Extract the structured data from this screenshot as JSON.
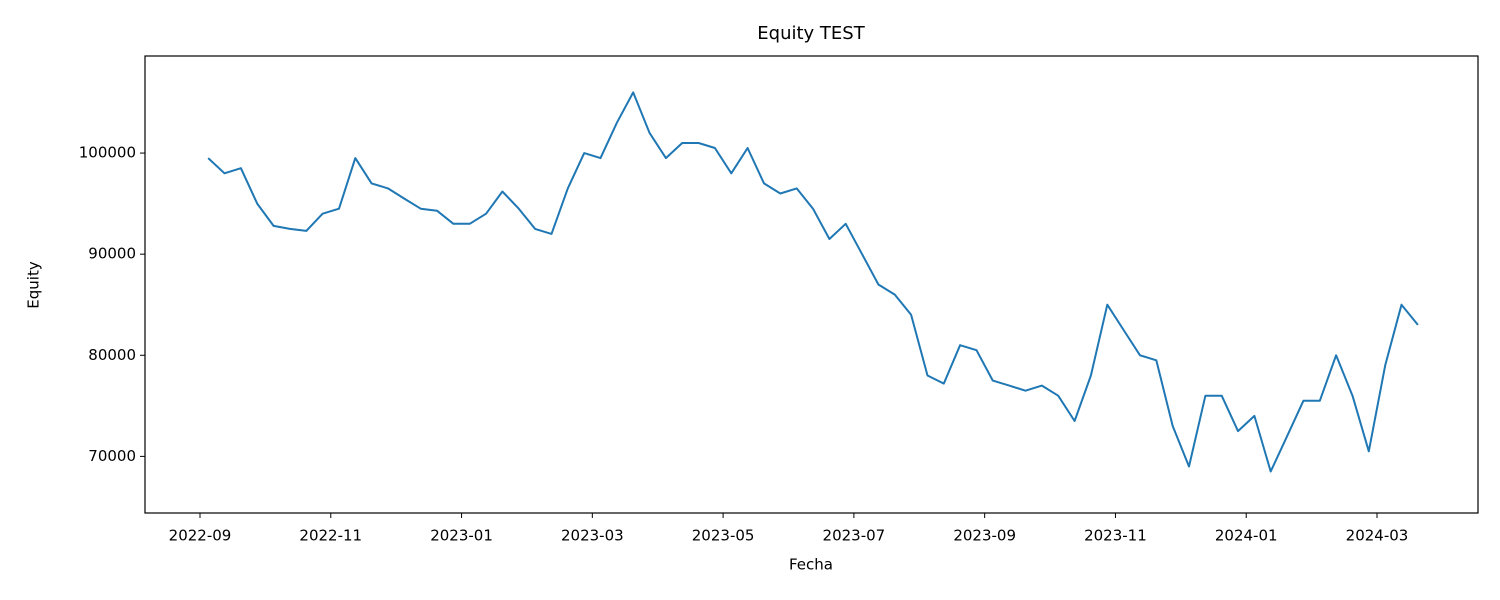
{
  "chart_data": {
    "type": "line",
    "title": "Equity TEST",
    "x_label": "Fecha",
    "y_label": "Equity",
    "x": [
      "2022-09",
      "2022-09",
      "2022-09",
      "2022-09",
      "2022-10",
      "2022-10",
      "2022-10",
      "2022-10",
      "2022-11",
      "2022-11",
      "2022-11",
      "2022-11",
      "2022-12",
      "2022-12",
      "2022-12",
      "2022-12",
      "2023-01",
      "2023-01",
      "2023-01",
      "2023-01",
      "2023-02",
      "2023-02",
      "2023-02",
      "2023-02",
      "2023-03",
      "2023-03",
      "2023-03",
      "2023-03",
      "2023-04",
      "2023-04",
      "2023-04",
      "2023-04",
      "2023-05",
      "2023-05",
      "2023-05",
      "2023-05",
      "2023-06",
      "2023-06",
      "2023-06",
      "2023-06",
      "2023-07",
      "2023-07",
      "2023-07",
      "2023-07",
      "2023-08",
      "2023-08",
      "2023-08",
      "2023-08",
      "2023-09",
      "2023-09",
      "2023-09",
      "2023-09",
      "2023-10",
      "2023-10",
      "2023-10",
      "2023-10",
      "2023-11",
      "2023-11",
      "2023-11",
      "2023-11",
      "2023-12",
      "2023-12",
      "2023-12",
      "2023-12",
      "2024-01",
      "2024-01",
      "2024-01",
      "2024-01",
      "2024-02",
      "2024-02",
      "2024-02",
      "2024-02",
      "2024-03",
      "2024-03",
      "2024-03"
    ],
    "values": [
      99500,
      98000,
      98500,
      95000,
      92800,
      92500,
      92300,
      94000,
      94500,
      99500,
      97000,
      96500,
      95500,
      94500,
      94300,
      93000,
      93000,
      94000,
      96200,
      94500,
      92500,
      92000,
      96500,
      100000,
      99500,
      103000,
      106000,
      102000,
      99500,
      101000,
      101000,
      100500,
      98000,
      100500,
      97000,
      96000,
      96500,
      94500,
      91500,
      93000,
      90000,
      87000,
      86000,
      84000,
      78000,
      77200,
      81000,
      80500,
      77500,
      77000,
      76500,
      77000,
      76000,
      73500,
      78000,
      85000,
      82500,
      80000,
      79500,
      73000,
      69000,
      76000,
      76000,
      72500,
      74000,
      68500,
      72000,
      75500,
      75500,
      80000,
      76000,
      70500,
      79000,
      85000,
      83000
    ],
    "color": "#1f77b4",
    "xlim": [
      "2022-09",
      "2024-03"
    ],
    "xticks": [
      "2022-09",
      "2022-11",
      "2023-01",
      "2023-03",
      "2023-05",
      "2023-07",
      "2023-09",
      "2023-11",
      "2024-01",
      "2024-03"
    ],
    "ylim": [
      64400,
      109600
    ],
    "yticks": [
      70000,
      80000,
      90000,
      100000
    ]
  }
}
